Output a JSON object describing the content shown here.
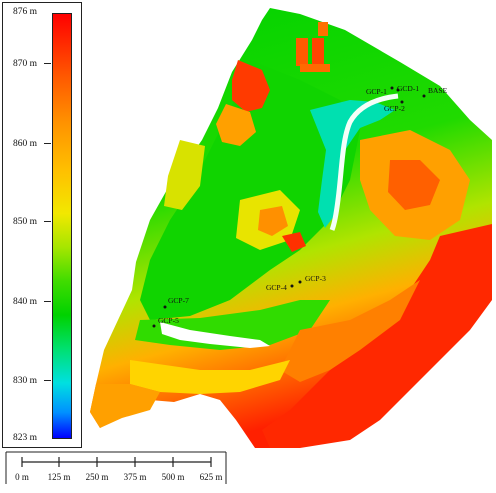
{
  "legend": {
    "labels": [
      "876 m",
      "870 m",
      "860 m",
      "850 m",
      "840 m",
      "830 m",
      "823 m"
    ]
  },
  "scale": {
    "labels": [
      "0 m",
      "125 m",
      "250 m",
      "375 m",
      "500 m",
      "625 m"
    ]
  },
  "points": {
    "gcp1": "GCP-1",
    "gcd1": "GCD-1",
    "base": "BASE",
    "gcp2": "GCP-2",
    "gcp3": "GCP-3",
    "gcp4": "GCP-4",
    "gcp7": "GCP-7",
    "gcp5": "GCP-5"
  },
  "colors": {
    "high": "#ff0000",
    "mid": "#00d200",
    "low": "#0000ff"
  }
}
